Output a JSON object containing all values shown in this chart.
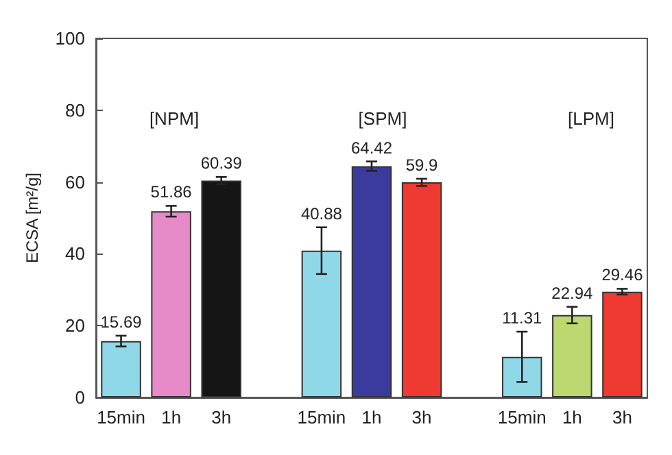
{
  "chart_data": {
    "type": "bar",
    "ylabel": "ECSA [m²/g]",
    "categories": [
      "15min",
      "1h",
      "3h",
      null,
      "15min",
      "1h",
      "3h",
      null,
      "15min",
      "1h",
      "3h"
    ],
    "values": [
      15.69,
      51.86,
      60.39,
      null,
      40.88,
      64.42,
      59.9,
      null,
      11.31,
      22.94,
      29.46
    ],
    "colors": [
      "#8fd8e8",
      "#e68ac8",
      "#151515",
      "#8fd8e8",
      "#8fd8e8",
      "#3b3b9e",
      "#ee3a30",
      "#8fd8e8",
      "#8fd8e8",
      "#bcd870",
      "#ee3a30"
    ],
    "errors": [
      1.5,
      1.5,
      1,
      null,
      6.5,
      1.3,
      1,
      null,
      7,
      2.3,
      0.8
    ],
    "ylim": [
      0,
      100
    ],
    "yticks": [
      0,
      20,
      40,
      60,
      80,
      100
    ],
    "grid": false,
    "data_labels": true,
    "annotations": [
      "[NPM]",
      "[SPM]",
      "[LPM]"
    ]
  }
}
